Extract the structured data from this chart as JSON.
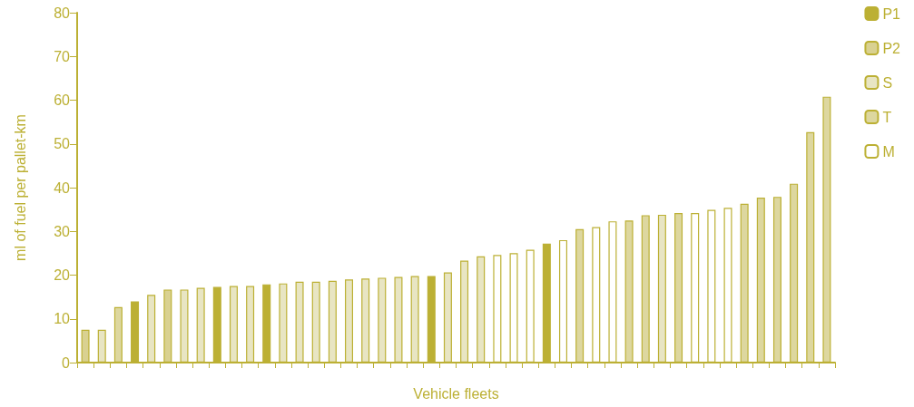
{
  "chart_data": {
    "type": "bar",
    "xlabel": "Vehicle fleets",
    "ylabel": "ml of fuel per pallet-km",
    "categories": [
      null,
      null,
      null,
      null,
      null,
      null,
      null,
      null,
      null,
      null,
      null,
      null,
      null,
      null,
      null,
      null,
      null,
      null,
      null,
      null,
      null,
      null,
      null,
      null,
      null,
      null,
      null,
      null,
      null,
      null,
      null,
      null,
      null,
      null,
      null,
      null,
      null,
      null,
      null,
      null,
      null,
      null,
      null,
      null,
      null,
      null
    ],
    "series": [
      {
        "name": "P1",
        "color": "#bcb034",
        "values": [
          null,
          null,
          null,
          14,
          null,
          null,
          null,
          null,
          17.3,
          null,
          null,
          17.9,
          null,
          null,
          null,
          null,
          null,
          null,
          null,
          null,
          null,
          19.8,
          null,
          null,
          null,
          null,
          null,
          null,
          27.2,
          null,
          null,
          null,
          null,
          null,
          null,
          null,
          null,
          null,
          null,
          null,
          null,
          null,
          null,
          null,
          null,
          null
        ]
      },
      {
        "name": "P2",
        "color": "#d9d191",
        "values": [
          7.5,
          null,
          null,
          null,
          null,
          16.7,
          null,
          null,
          null,
          null,
          null,
          null,
          null,
          null,
          null,
          null,
          null,
          null,
          null,
          null,
          null,
          null,
          null,
          null,
          null,
          null,
          null,
          null,
          null,
          null,
          null,
          null,
          null,
          null,
          null,
          null,
          null,
          null,
          null,
          null,
          null,
          null,
          null,
          null,
          null,
          null
        ]
      },
      {
        "name": "S",
        "color": "#e8e5c3",
        "values": [
          null,
          7.5,
          null,
          null,
          15.5,
          null,
          16.7,
          17.1,
          null,
          17.5,
          17.5,
          null,
          18.1,
          18.5,
          18.5,
          18.7,
          19,
          19.2,
          19.4,
          19.6,
          19.8,
          null,
          20.6,
          23.3,
          24.3,
          null,
          null,
          null,
          null,
          null,
          null,
          null,
          null,
          null,
          null,
          33.8,
          null,
          null,
          null,
          null,
          null,
          null,
          null,
          null,
          null,
          null
        ]
      },
      {
        "name": "T",
        "color": "#ddd79f",
        "values": [
          null,
          null,
          12.7,
          null,
          null,
          null,
          null,
          null,
          null,
          null,
          null,
          null,
          null,
          null,
          null,
          null,
          null,
          null,
          null,
          null,
          null,
          null,
          null,
          null,
          null,
          null,
          null,
          null,
          null,
          null,
          30.5,
          null,
          null,
          32.5,
          33.7,
          null,
          34.2,
          null,
          null,
          null,
          36.3,
          37.7,
          37.9,
          40.9,
          52.7,
          60.8
        ]
      },
      {
        "name": "M",
        "color": "#ffffff",
        "values": [
          null,
          null,
          null,
          null,
          null,
          null,
          null,
          null,
          null,
          null,
          null,
          null,
          null,
          null,
          null,
          null,
          null,
          null,
          null,
          null,
          null,
          null,
          null,
          null,
          null,
          24.6,
          25,
          25.8,
          null,
          28,
          null,
          31,
          32.3,
          null,
          null,
          null,
          null,
          34.2,
          34.9,
          35.4,
          null,
          null,
          null,
          null,
          null,
          null
        ]
      }
    ],
    "ylim": [
      0,
      80
    ],
    "yticks": [
      0,
      10,
      20,
      30,
      40,
      50,
      60,
      70,
      80
    ],
    "grid": false,
    "legend": "top right",
    "tick_labels": "y"
  }
}
